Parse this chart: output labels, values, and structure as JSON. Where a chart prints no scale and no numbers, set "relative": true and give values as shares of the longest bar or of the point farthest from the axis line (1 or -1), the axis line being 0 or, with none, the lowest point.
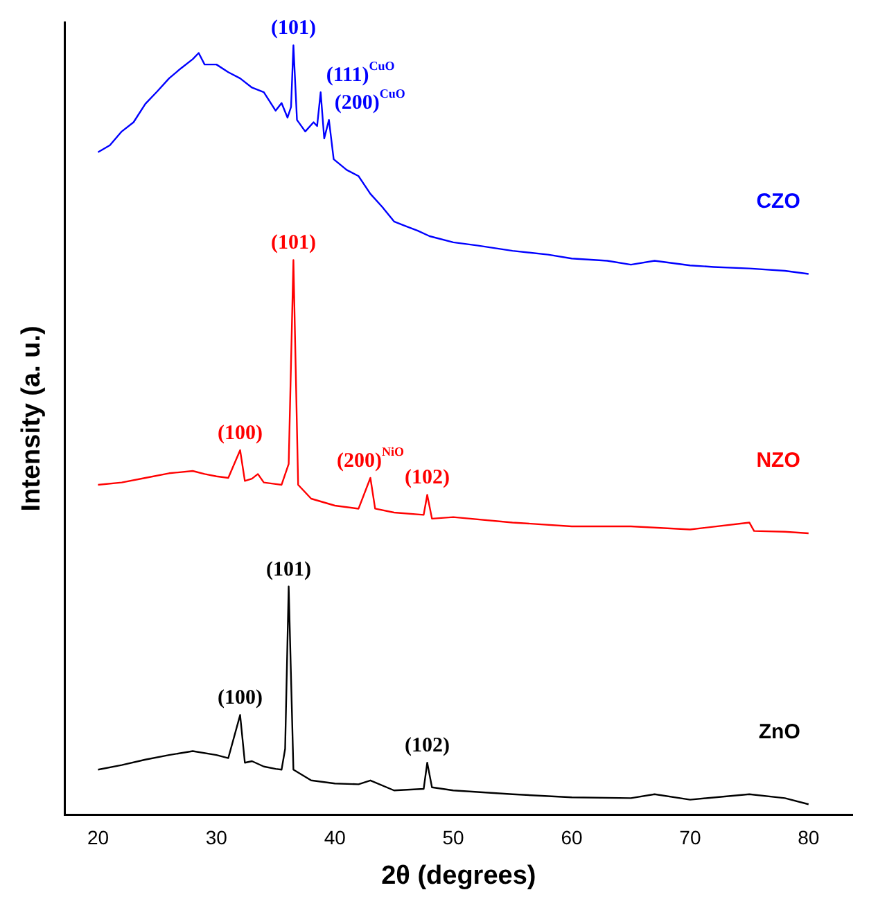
{
  "chart_data": {
    "type": "line",
    "xlabel": "2θ (degrees)",
    "ylabel": "Intensity (a. u.)",
    "relative": true,
    "xlim": [
      17.2,
      83.7
    ],
    "xticks": [
      20,
      30,
      40,
      50,
      60,
      70,
      80
    ],
    "grid": false,
    "legend": false,
    "marker": "none",
    "line_style": "solid",
    "series": [
      {
        "name": "CZO",
        "color": "#0000ff",
        "x": [
          20,
          21,
          22,
          23,
          24,
          25,
          26,
          27,
          28,
          28.5,
          29,
          30,
          31,
          32,
          33,
          34,
          35,
          35.5,
          36,
          36.3,
          36.5,
          36.8,
          37.5,
          38.2,
          38.5,
          38.8,
          39.1,
          39.5,
          39.9,
          41,
          42,
          43,
          44,
          45,
          46,
          47,
          48,
          50,
          52,
          55,
          58,
          60,
          63,
          65,
          67,
          70,
          72,
          75,
          78,
          80
        ],
        "values": [
          0.861,
          0.87,
          0.888,
          0.9,
          0.924,
          0.94,
          0.957,
          0.97,
          0.982,
          0.99,
          0.975,
          0.975,
          0.965,
          0.957,
          0.945,
          0.939,
          0.915,
          0.925,
          0.906,
          0.92,
          1.0,
          0.903,
          0.888,
          0.9,
          0.895,
          0.939,
          0.879,
          0.903,
          0.852,
          0.838,
          0.83,
          0.807,
          0.79,
          0.771,
          0.765,
          0.759,
          0.752,
          0.744,
          0.74,
          0.733,
          0.728,
          0.723,
          0.72,
          0.715,
          0.72,
          0.714,
          0.712,
          0.71,
          0.707,
          0.703
        ]
      },
      {
        "name": "NZO",
        "color": "#ff0000",
        "x": [
          20,
          22,
          24,
          26,
          28,
          29,
          30,
          31,
          32,
          32.4,
          33,
          33.5,
          34,
          35,
          35.5,
          36.1,
          36.5,
          36.9,
          38,
          40,
          42,
          43,
          43.4,
          45,
          47.5,
          47.8,
          48.2,
          50,
          55,
          60,
          65,
          70,
          75,
          75.4,
          78,
          80
        ],
        "values": [
          0.429,
          0.432,
          0.438,
          0.444,
          0.447,
          0.443,
          0.44,
          0.438,
          0.474,
          0.434,
          0.437,
          0.443,
          0.432,
          0.43,
          0.429,
          0.456,
          0.721,
          0.429,
          0.411,
          0.402,
          0.398,
          0.438,
          0.398,
          0.393,
          0.39,
          0.416,
          0.385,
          0.387,
          0.38,
          0.375,
          0.375,
          0.371,
          0.38,
          0.369,
          0.368,
          0.366
        ]
      },
      {
        "name": "ZnO",
        "color": "#000000",
        "x": [
          20,
          22,
          24,
          26,
          28,
          30,
          31,
          32,
          32.4,
          33,
          34,
          35,
          35.5,
          35.8,
          36.1,
          36.5,
          38,
          40,
          42,
          43,
          45,
          47.5,
          47.8,
          48.2,
          50,
          55,
          60,
          65,
          67,
          70,
          75,
          78,
          80
        ],
        "values": [
          0.059,
          0.065,
          0.072,
          0.078,
          0.083,
          0.078,
          0.074,
          0.13,
          0.068,
          0.07,
          0.063,
          0.06,
          0.059,
          0.086,
          0.297,
          0.059,
          0.045,
          0.041,
          0.04,
          0.045,
          0.032,
          0.034,
          0.068,
          0.036,
          0.032,
          0.027,
          0.023,
          0.022,
          0.027,
          0.02,
          0.027,
          0.022,
          0.014
        ]
      }
    ],
    "annotations": [
      {
        "text": "(101)",
        "x": 36.5,
        "y": 1.0
      },
      {
        "text": "(111)$^{CuO}$",
        "x": 38.8,
        "y": 0.939
      },
      {
        "text": "(200)$^{CuO}$",
        "x": 39.5,
        "y": 0.903
      },
      {
        "text": "(100)",
        "x": 32,
        "y": 0.474
      },
      {
        "text": "(101)",
        "x": 36.5,
        "y": 0.721
      },
      {
        "text": "(200)$^{NiO}$",
        "x": 43,
        "y": 0.438
      },
      {
        "text": "(102)",
        "x": 47.8,
        "y": 0.416
      },
      {
        "text": "(100)",
        "x": 32,
        "y": 0.13
      },
      {
        "text": "(101)",
        "x": 36.1,
        "y": 0.297
      },
      {
        "text": "(102)",
        "x": 47.8,
        "y": 0.068
      }
    ]
  }
}
